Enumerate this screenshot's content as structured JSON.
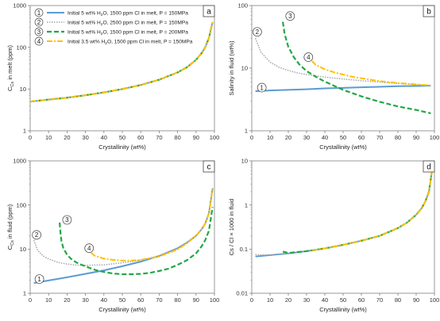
{
  "colors": {
    "series_1": "#5b9bd5",
    "series_2": "#a6a6a6",
    "series_3": "#22a846",
    "series_4": "#ffc000",
    "axis": "#7f7f7f",
    "grid": "#e6e6e6"
  },
  "legend": {
    "entries": [
      {
        "marker": "1",
        "prefix": "Initial 5 wt% H",
        "sub": "2",
        "suffix": "O, 1500 ppm Cl in melt,  P = 150MPa"
      },
      {
        "marker": "2",
        "prefix": "Initial 5 wt% H",
        "sub": "2",
        "suffix": "O, 2500 ppm Cl in melt,  P = 150MPa"
      },
      {
        "marker": "3",
        "prefix": "Initial 5 wt% H",
        "sub": "2",
        "suffix": "O, 1500 ppm Cl in melt,  P = 200MPa"
      },
      {
        "marker": "4",
        "prefix": "Initial 3.5 wt% H",
        "sub": "2",
        "suffix": "O, 1500 ppm Cl in melt,  P = 150MPa"
      }
    ]
  },
  "chart_data": [
    {
      "panel": "a",
      "type": "line",
      "xlabel": "Crystallinity (wt%)",
      "ylabel": {
        "main": "C",
        "sub": "Cs",
        "rest": " in melt (ppm)"
      },
      "yscale": "log",
      "xlim": [
        0,
        100
      ],
      "ylim": [
        1,
        1000
      ],
      "xticks": [
        "0",
        "10",
        "20",
        "30",
        "40",
        "50",
        "60",
        "70",
        "80",
        "90",
        "100"
      ],
      "yticks": [
        "1",
        "10",
        "100",
        "1000"
      ],
      "series": [
        {
          "id": 1,
          "x": [
            0,
            10,
            20,
            30,
            40,
            50,
            60,
            70,
            80,
            85,
            90,
            93,
            95,
            97,
            99
          ],
          "y": [
            5.0,
            5.6,
            6.2,
            7.1,
            8.3,
            10,
            12.5,
            16.7,
            25,
            33,
            50,
            72,
            100,
            167,
            400
          ]
        },
        {
          "id": 2,
          "x": [
            0,
            10,
            20,
            30,
            40,
            50,
            60,
            70,
            80,
            85,
            90,
            93,
            95,
            97,
            99
          ],
          "y": [
            5.0,
            5.6,
            6.2,
            7.1,
            8.3,
            10,
            12.5,
            16.7,
            25,
            33,
            50,
            72,
            100,
            167,
            400
          ]
        },
        {
          "id": 3,
          "x": [
            0,
            10,
            20,
            30,
            40,
            50,
            60,
            70,
            80,
            85,
            90,
            93,
            95,
            97,
            99
          ],
          "y": [
            5.0,
            5.6,
            6.2,
            7.1,
            8.3,
            10,
            12.5,
            16.7,
            25,
            33,
            50,
            72,
            100,
            167,
            400
          ]
        },
        {
          "id": 4,
          "x": [
            0,
            10,
            20,
            30,
            40,
            50,
            60,
            70,
            80,
            85,
            90,
            93,
            95,
            97,
            99
          ],
          "y": [
            5.0,
            5.6,
            6.2,
            7.1,
            8.3,
            10,
            12.5,
            16.7,
            25,
            33,
            50,
            72,
            100,
            167,
            400
          ]
        }
      ]
    },
    {
      "panel": "b",
      "type": "line",
      "xlabel": "Crystallinity (wt%)",
      "ylabel": {
        "main": "Salinity in fluid (wt%)",
        "sub": "",
        "rest": ""
      },
      "yscale": "log",
      "xlim": [
        0,
        100
      ],
      "ylim": [
        1,
        100
      ],
      "xticks": [
        "0",
        "10",
        "20",
        "30",
        "40",
        "50",
        "60",
        "70",
        "80",
        "90",
        "100"
      ],
      "yticks": [
        "1",
        "10",
        "100"
      ],
      "series": [
        {
          "id": 1,
          "x": [
            2,
            10,
            20,
            30,
            40,
            50,
            60,
            70,
            80,
            90,
            98
          ],
          "y": [
            4.3,
            4.4,
            4.5,
            4.6,
            4.75,
            4.85,
            4.95,
            5.05,
            5.15,
            5.2,
            5.25
          ]
        },
        {
          "id": 2,
          "x": [
            2,
            5,
            10,
            15,
            20,
            25,
            30,
            40,
            50,
            60,
            70,
            80,
            90,
            98
          ],
          "y": [
            30,
            18,
            12.5,
            10.3,
            9.2,
            8.4,
            7.9,
            7.2,
            6.7,
            6.3,
            6.0,
            5.7,
            5.45,
            5.3
          ]
        },
        {
          "id": 3,
          "x": [
            17,
            18,
            20,
            23,
            26,
            30,
            35,
            40,
            50,
            60,
            70,
            80,
            90,
            98
          ],
          "y": [
            55,
            35,
            22,
            15,
            11.5,
            9,
            7.3,
            6.1,
            4.5,
            3.55,
            2.9,
            2.45,
            2.15,
            1.9
          ]
        },
        {
          "id": 4,
          "x": [
            33,
            35,
            40,
            45,
            50,
            55,
            60,
            70,
            80,
            90,
            98
          ],
          "y": [
            13,
            11.3,
            9.6,
            8.6,
            7.9,
            7.3,
            6.9,
            6.2,
            5.8,
            5.5,
            5.3
          ]
        }
      ],
      "annotations": [
        {
          "text": "1",
          "x": 5.5,
          "y": 4.9
        },
        {
          "text": "2",
          "x": 3,
          "y": 38
        },
        {
          "text": "3",
          "x": 21,
          "y": 68
        },
        {
          "text": "4",
          "x": 31,
          "y": 15
        }
      ]
    },
    {
      "panel": "c",
      "type": "line",
      "xlabel": "Crystallinity (wt%)",
      "ylabel": {
        "main": "C",
        "sub": "Cs",
        "rest": " in fluid (ppm)"
      },
      "yscale": "log",
      "xlim": [
        0,
        100
      ],
      "ylim": [
        1,
        1000
      ],
      "xticks": [
        "0",
        "10",
        "20",
        "30",
        "40",
        "50",
        "60",
        "70",
        "80",
        "90",
        "100"
      ],
      "yticks": [
        "1",
        "10",
        "100",
        "1000"
      ],
      "series": [
        {
          "id": 1,
          "x": [
            2,
            10,
            20,
            30,
            40,
            50,
            60,
            70,
            80,
            85,
            90,
            93,
            95,
            97,
            99
          ],
          "y": [
            1.7,
            1.95,
            2.3,
            2.75,
            3.3,
            4.1,
            5.2,
            7,
            10.5,
            14,
            20,
            28,
            38,
            65,
            240
          ]
        },
        {
          "id": 2,
          "x": [
            2,
            4,
            7,
            10,
            15,
            20,
            25,
            30,
            40,
            50,
            60,
            70,
            80,
            85,
            90,
            93,
            95,
            97,
            99
          ],
          "y": [
            16,
            9.5,
            7,
            6.0,
            5.0,
            4.6,
            4.35,
            4.3,
            4.4,
            4.9,
            5.6,
            7.1,
            10.5,
            14,
            20,
            28,
            38,
            65,
            240
          ]
        },
        {
          "id": 3,
          "x": [
            16,
            16.5,
            17,
            18,
            20,
            22,
            25,
            28,
            32,
            36,
            40,
            45,
            50,
            55,
            60,
            65,
            70,
            75,
            80,
            85,
            90,
            93,
            95,
            97,
            99
          ],
          "y": [
            40,
            22,
            15,
            10.5,
            7.5,
            6.1,
            5.0,
            4.4,
            3.8,
            3.3,
            3.05,
            2.8,
            2.7,
            2.7,
            2.75,
            2.9,
            3.2,
            3.6,
            4.4,
            5.6,
            8,
            11.5,
            16,
            26,
            90
          ]
        },
        {
          "id": 4,
          "x": [
            33,
            35,
            40,
            45,
            50,
            55,
            60,
            70,
            80,
            85,
            90,
            93,
            95,
            97,
            99
          ],
          "y": [
            8.3,
            7.1,
            6.1,
            5.7,
            5.5,
            5.5,
            5.7,
            6.8,
            9.8,
            13.5,
            20,
            28,
            38,
            65,
            240
          ]
        }
      ],
      "annotations": [
        {
          "text": "1",
          "x": 5,
          "y": 2.1
        },
        {
          "text": "2",
          "x": 3.5,
          "y": 21
        },
        {
          "text": "3",
          "x": 20,
          "y": 46
        },
        {
          "text": "4",
          "x": 32,
          "y": 10.5
        }
      ]
    },
    {
      "panel": "d",
      "type": "line",
      "xlabel": "Crystallinity (wt%)",
      "ylabel": {
        "main": "Cs / Cl × 1000 in fluid",
        "sub": "",
        "rest": ""
      },
      "yscale": "log",
      "xlim": [
        0,
        100
      ],
      "ylim": [
        0.01,
        10
      ],
      "xticks": [
        "0",
        "10",
        "20",
        "30",
        "40",
        "50",
        "60",
        "70",
        "80",
        "90",
        "100"
      ],
      "yticks": [
        "0.01",
        "0.1",
        "1",
        "10"
      ],
      "series": [
        {
          "id": 1,
          "x": [
            2,
            10,
            20,
            30,
            40,
            50,
            60,
            70,
            80,
            85,
            90,
            93,
            95,
            97,
            99
          ],
          "y": [
            0.068,
            0.073,
            0.08,
            0.09,
            0.104,
            0.125,
            0.155,
            0.2,
            0.3,
            0.4,
            0.6,
            0.85,
            1.2,
            2.0,
            7.5
          ]
        },
        {
          "id": 2,
          "x": [
            2,
            10,
            20,
            30,
            40,
            50,
            60,
            70,
            80,
            85,
            90,
            93,
            95,
            97,
            99
          ],
          "y": [
            0.075,
            0.074,
            0.08,
            0.09,
            0.104,
            0.125,
            0.155,
            0.2,
            0.3,
            0.4,
            0.6,
            0.85,
            1.2,
            2.0,
            7.5
          ]
        },
        {
          "id": 3,
          "x": [
            17,
            20,
            30,
            40,
            50,
            60,
            70,
            80,
            85,
            90,
            93,
            95,
            97,
            99
          ],
          "y": [
            0.088,
            0.082,
            0.09,
            0.104,
            0.125,
            0.155,
            0.2,
            0.3,
            0.4,
            0.6,
            0.85,
            1.2,
            2.0,
            7.5
          ]
        },
        {
          "id": 4,
          "x": [
            33,
            40,
            50,
            60,
            70,
            80,
            85,
            90,
            93,
            95,
            97,
            99
          ],
          "y": [
            0.095,
            0.104,
            0.125,
            0.155,
            0.2,
            0.3,
            0.4,
            0.6,
            0.85,
            1.2,
            2.0,
            7.5
          ]
        }
      ]
    }
  ]
}
